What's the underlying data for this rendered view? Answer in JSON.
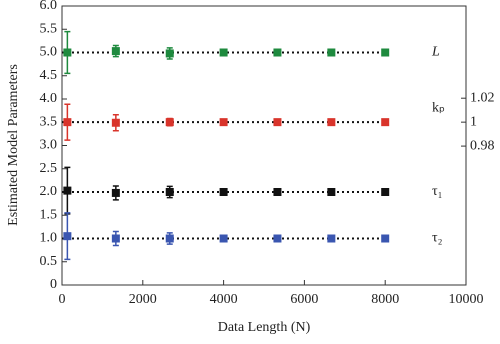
{
  "chart_data": {
    "type": "scatter",
    "x_label": "Data Length (N)",
    "y_label": "Estimated Model Parameters",
    "x": [
      133,
      1333,
      2667,
      4000,
      5333,
      6667,
      8000
    ],
    "xlim": [
      0,
      10000
    ],
    "xticks": [
      0,
      2000,
      4000,
      6000,
      8000,
      10000
    ],
    "ylim": [
      0,
      6
    ],
    "yticks": [
      0,
      0.5,
      {
        "value": 1,
        "label": "1.0"
      },
      1.5,
      {
        "value": 2,
        "label": "2.0"
      },
      2.5,
      {
        "value": 3,
        "label": "3.0"
      },
      3.5,
      {
        "value": 4,
        "label": "4.0"
      },
      4.5,
      {
        "value": 5,
        "label": "5.0"
      },
      5.5,
      {
        "value": 6,
        "label": "6.0"
      }
    ],
    "y2lim": [
      0.864,
      1.097
    ],
    "y2ticks": [
      0.98,
      1,
      1.02
    ],
    "reference_line_style": "dotted",
    "series": [
      {
        "name": "L",
        "color": "#1e8a3e",
        "reference": 5,
        "values": [
          5.0,
          5.03,
          4.98,
          5.0,
          5.0,
          5.0,
          5.0
        ],
        "errors": [
          0.45,
          0.12,
          0.12,
          0.07,
          0.05,
          0.05,
          0.04
        ]
      },
      {
        "name": "kₚ",
        "color": "#d9342b",
        "axis": "y2",
        "reference": 1,
        "values": [
          1.0,
          0.9995,
          1.0,
          1.0,
          1.0,
          1.0,
          1.0
        ],
        "errors": [
          0.015,
          0.0067,
          0.003,
          0.002,
          0.002,
          0.002,
          0.002
        ]
      },
      {
        "name": "τ₁",
        "color": "#111111",
        "reference": 2,
        "values": [
          2.03,
          1.98,
          2.0,
          2.0,
          2.0,
          2.0,
          2.0
        ],
        "errors": [
          0.5,
          0.15,
          0.12,
          0.07,
          0.05,
          0.05,
          0.04
        ]
      },
      {
        "name": "τ₂",
        "color": "#3a56b0",
        "reference": 1,
        "values": [
          1.05,
          1.0,
          1.0,
          1.0,
          1.0,
          1.0,
          1.0
        ],
        "errors": [
          0.5,
          0.15,
          0.12,
          0.07,
          0.05,
          0.05,
          0.04
        ]
      }
    ]
  }
}
